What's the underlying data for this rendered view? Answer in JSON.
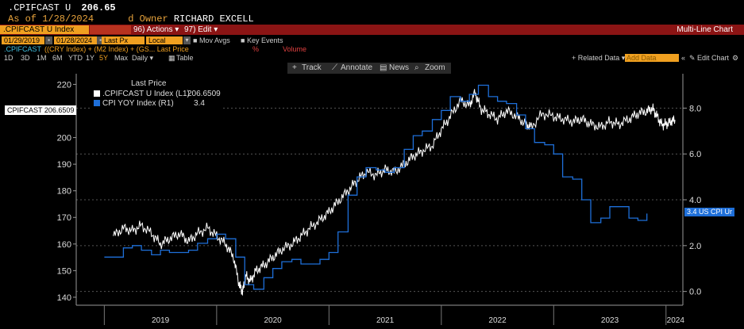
{
  "header": {
    "ticker": ".CPIFCAST U",
    "last_value": "206.65",
    "as_of": "As of 1/28/2024",
    "owner_label": "d Owner",
    "owner_name": "RICHARD EXCELL"
  },
  "red_bar": {
    "security": ".CPIFCAST U Index",
    "actions": "96) Actions ▾",
    "edit": "97) Edit ▾",
    "title": "Multi-Line Chart"
  },
  "options_bar": {
    "start_date": "01/29/2019",
    "end_date": "01/28/2024",
    "price_field": "Last Px",
    "currency": "Local CCY",
    "mov_avgs": "Mov Avgs",
    "key_events": "Key Events"
  },
  "formula_bar": {
    "name": ".CPIFCAST",
    "formula": "((CRY Index) + (M2 Index) + (GS... Last Price",
    "percent": "%",
    "volume": "Volume"
  },
  "timeframes": {
    "items": [
      "1D",
      "3D",
      "1M",
      "6M",
      "YTD",
      "1Y",
      "5Y",
      "Max"
    ],
    "active": "5Y",
    "frequency": "Daily ▾",
    "table": "Table"
  },
  "right_tools": {
    "related": "+ Related Data ▾",
    "add_data": "Add Data",
    "collapse": "«",
    "edit_chart": "Edit Chart",
    "gear": "⚙"
  },
  "chart_toolbar": {
    "track": "Track",
    "annotate": "Annotate",
    "news": "News",
    "zoom": "Zoom"
  },
  "legend": {
    "title": "Last Price",
    "rows": [
      {
        "label": ".CPIFCAST U Index  (L1)",
        "value": "206.6509",
        "color": "#ffffff"
      },
      {
        "label": "CPI YOY Index  (R1)",
        "value": "3.4",
        "color": "#1e6fd9"
      }
    ]
  },
  "tags": {
    "left": "CPIFCAST 206.6509",
    "right": "3.4 US CPI Ur"
  },
  "chart_data": {
    "type": "line",
    "x_labels": [
      "2019",
      "2020",
      "2021",
      "2022",
      "2023",
      "2024"
    ],
    "left_axis": {
      "ticks": [
        "140",
        "150",
        "160",
        "170",
        "180",
        "190",
        "200",
        "210",
        "220"
      ],
      "range": [
        137,
        224
      ]
    },
    "right_axis": {
      "ticks": [
        "0.0",
        "2.0",
        "4.0",
        "6.0",
        "8.0"
      ],
      "range": [
        -0.6,
        9.5
      ]
    },
    "series": [
      {
        "name": ".CPIFCAST U Index",
        "axis": "left",
        "color": "#ffffff",
        "points": [
          [
            2019.08,
            163
          ],
          [
            2019.17,
            166
          ],
          [
            2019.25,
            165
          ],
          [
            2019.33,
            167
          ],
          [
            2019.42,
            164
          ],
          [
            2019.5,
            160
          ],
          [
            2019.58,
            162
          ],
          [
            2019.67,
            164
          ],
          [
            2019.75,
            161
          ],
          [
            2019.83,
            164
          ],
          [
            2019.92,
            166
          ],
          [
            2020.0,
            163
          ],
          [
            2020.08,
            160
          ],
          [
            2020.15,
            155
          ],
          [
            2020.2,
            145
          ],
          [
            2020.23,
            142
          ],
          [
            2020.26,
            148
          ],
          [
            2020.3,
            146
          ],
          [
            2020.35,
            150
          ],
          [
            2020.42,
            152
          ],
          [
            2020.5,
            155
          ],
          [
            2020.58,
            158
          ],
          [
            2020.67,
            160
          ],
          [
            2020.75,
            163
          ],
          [
            2020.83,
            166
          ],
          [
            2020.92,
            169
          ],
          [
            2021.0,
            172
          ],
          [
            2021.08,
            176
          ],
          [
            2021.17,
            180
          ],
          [
            2021.25,
            184
          ],
          [
            2021.33,
            187
          ],
          [
            2021.42,
            186
          ],
          [
            2021.5,
            188
          ],
          [
            2021.58,
            187
          ],
          [
            2021.67,
            190
          ],
          [
            2021.75,
            193
          ],
          [
            2021.83,
            195
          ],
          [
            2021.92,
            197
          ],
          [
            2022.0,
            203
          ],
          [
            2022.08,
            208
          ],
          [
            2022.17,
            214
          ],
          [
            2022.25,
            212
          ],
          [
            2022.3,
            217
          ],
          [
            2022.35,
            211
          ],
          [
            2022.42,
            209
          ],
          [
            2022.5,
            207
          ],
          [
            2022.58,
            210
          ],
          [
            2022.67,
            208
          ],
          [
            2022.75,
            205
          ],
          [
            2022.8,
            204
          ],
          [
            2022.9,
            209
          ],
          [
            2023.0,
            208
          ],
          [
            2023.08,
            207
          ],
          [
            2023.17,
            206
          ],
          [
            2023.25,
            207
          ],
          [
            2023.33,
            205
          ],
          [
            2023.42,
            204
          ],
          [
            2023.5,
            206
          ],
          [
            2023.58,
            205
          ],
          [
            2023.67,
            207
          ],
          [
            2023.75,
            209
          ],
          [
            2023.83,
            210
          ],
          [
            2023.88,
            211
          ],
          [
            2023.92,
            208
          ],
          [
            2023.96,
            205
          ],
          [
            2024.0,
            205
          ],
          [
            2024.04,
            206
          ],
          [
            2024.08,
            206.65
          ]
        ]
      },
      {
        "name": "CPI YOY Index",
        "axis": "right",
        "color": "#1e6fd9",
        "points": [
          [
            2019.0,
            1.5
          ],
          [
            2019.08,
            1.5
          ],
          [
            2019.17,
            1.9
          ],
          [
            2019.25,
            2.0
          ],
          [
            2019.33,
            1.8
          ],
          [
            2019.42,
            1.6
          ],
          [
            2019.5,
            1.8
          ],
          [
            2019.58,
            1.7
          ],
          [
            2019.67,
            1.7
          ],
          [
            2019.75,
            1.8
          ],
          [
            2019.83,
            2.1
          ],
          [
            2019.92,
            2.3
          ],
          [
            2020.0,
            2.5
          ],
          [
            2020.08,
            2.3
          ],
          [
            2020.17,
            1.5
          ],
          [
            2020.25,
            0.3
          ],
          [
            2020.33,
            0.1
          ],
          [
            2020.42,
            0.6
          ],
          [
            2020.5,
            1.0
          ],
          [
            2020.58,
            1.3
          ],
          [
            2020.67,
            1.4
          ],
          [
            2020.75,
            1.2
          ],
          [
            2020.83,
            1.2
          ],
          [
            2020.92,
            1.4
          ],
          [
            2021.0,
            1.7
          ],
          [
            2021.08,
            2.6
          ],
          [
            2021.17,
            4.2
          ],
          [
            2021.25,
            5.0
          ],
          [
            2021.33,
            5.4
          ],
          [
            2021.42,
            5.3
          ],
          [
            2021.5,
            5.2
          ],
          [
            2021.58,
            5.4
          ],
          [
            2021.67,
            6.2
          ],
          [
            2021.75,
            6.8
          ],
          [
            2021.83,
            7.0
          ],
          [
            2021.92,
            7.5
          ],
          [
            2022.0,
            7.9
          ],
          [
            2022.08,
            8.5
          ],
          [
            2022.17,
            8.3
          ],
          [
            2022.25,
            8.6
          ],
          [
            2022.33,
            9.0
          ],
          [
            2022.42,
            8.5
          ],
          [
            2022.5,
            8.3
          ],
          [
            2022.58,
            8.2
          ],
          [
            2022.67,
            7.7
          ],
          [
            2022.75,
            7.1
          ],
          [
            2022.83,
            6.5
          ],
          [
            2022.92,
            6.4
          ],
          [
            2023.0,
            6.0
          ],
          [
            2023.08,
            5.0
          ],
          [
            2023.17,
            4.9
          ],
          [
            2023.25,
            4.0
          ],
          [
            2023.33,
            3.0
          ],
          [
            2023.42,
            3.2
          ],
          [
            2023.5,
            3.7
          ],
          [
            2023.58,
            3.7
          ],
          [
            2023.67,
            3.2
          ],
          [
            2023.75,
            3.1
          ],
          [
            2023.83,
            3.4
          ]
        ]
      }
    ]
  }
}
